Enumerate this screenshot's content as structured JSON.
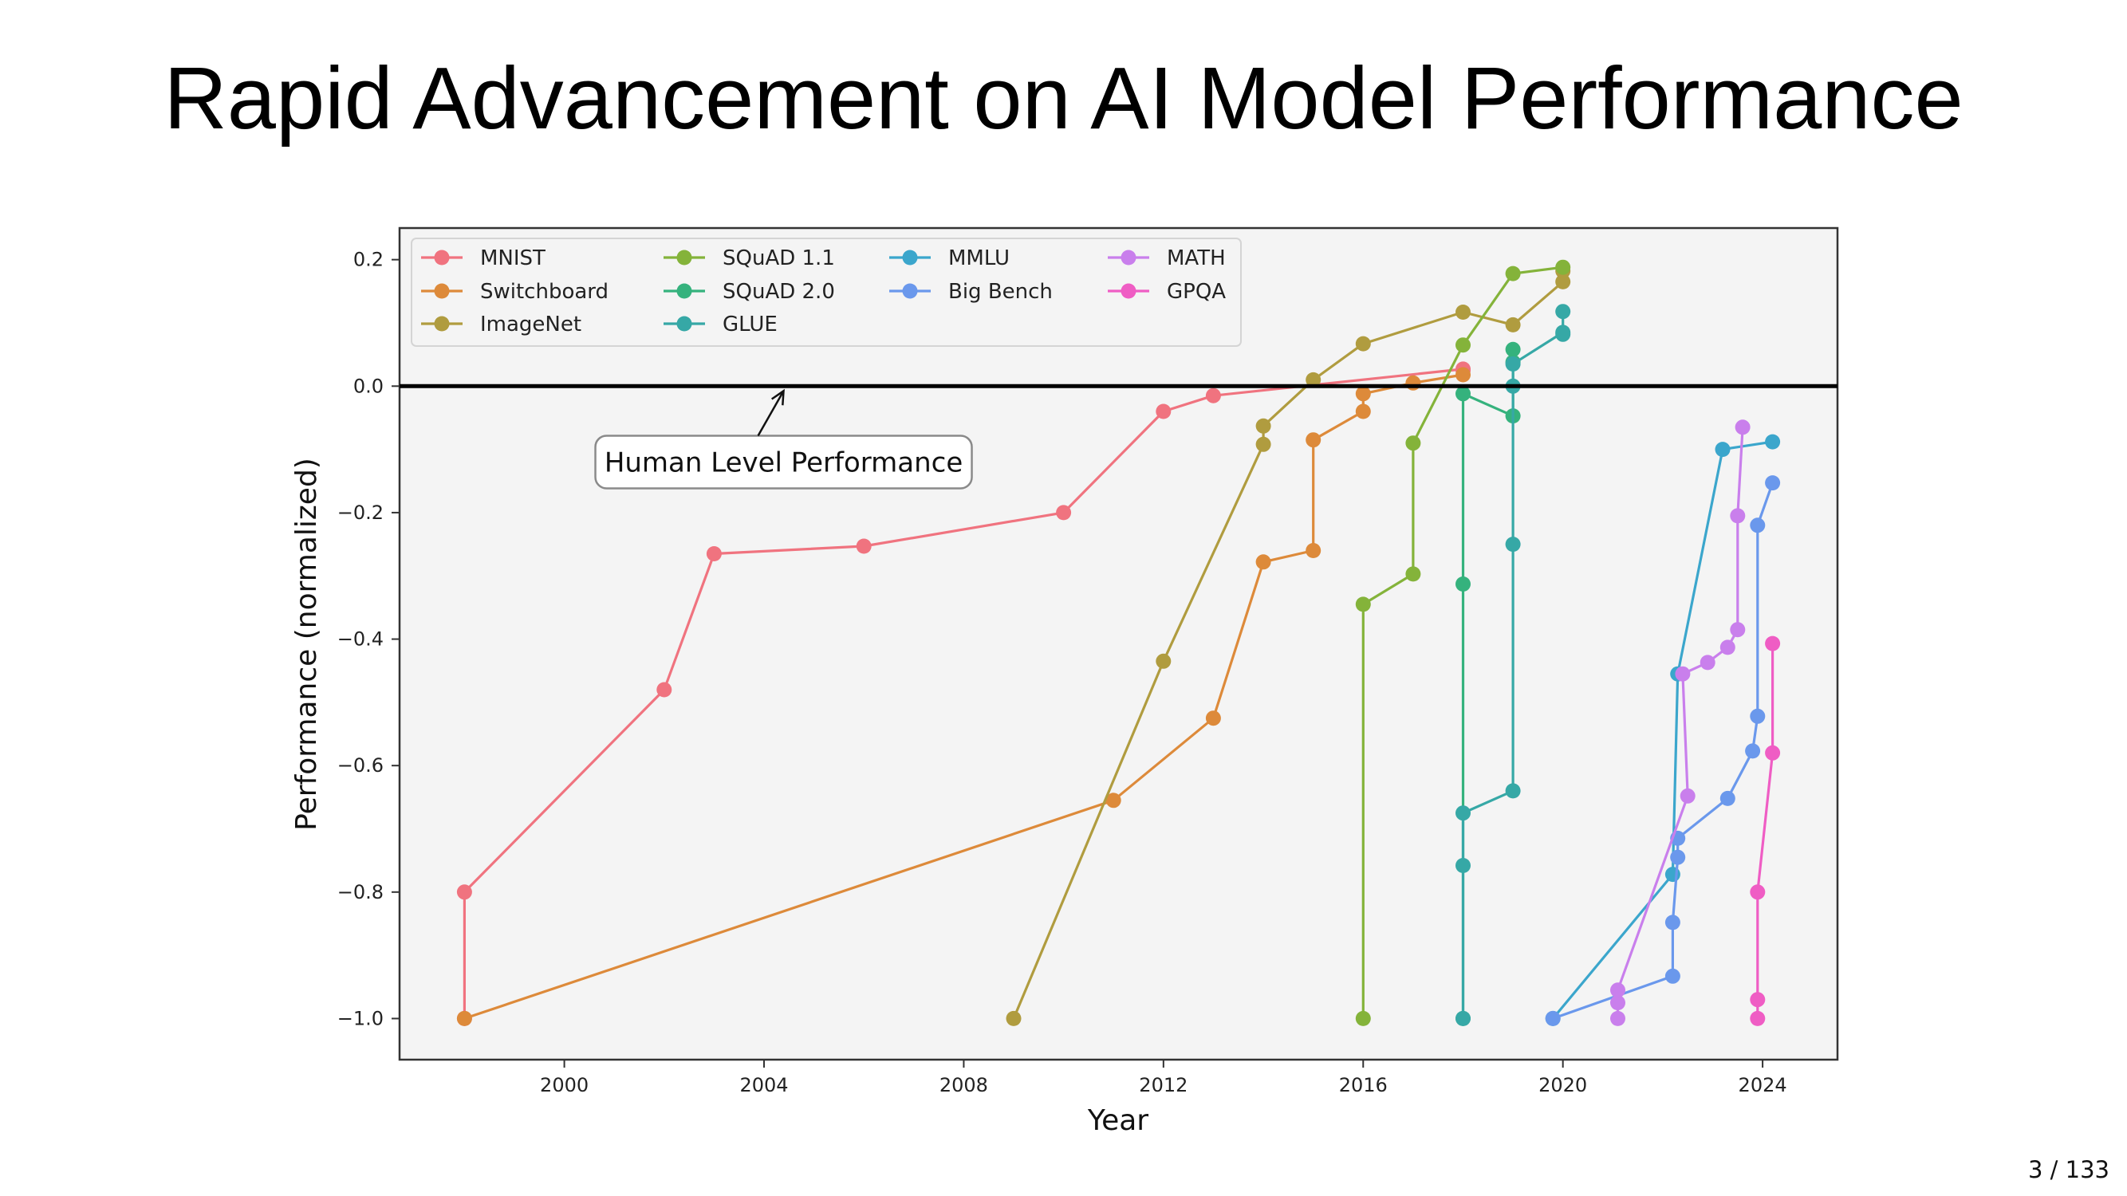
{
  "slide": {
    "title": "Rapid Advancement on AI Model Performance",
    "page_counter": "3 / 133"
  },
  "chart_data": {
    "type": "line",
    "title": "",
    "xlabel": "Year",
    "ylabel": "Performance (normalized)",
    "xlim": [
      1996.7,
      2025.5
    ],
    "ylim": [
      -1.065,
      0.25
    ],
    "xticks": [
      2000,
      2004,
      2008,
      2012,
      2016,
      2020,
      2024
    ],
    "xtick_labels": [
      "2000",
      "2004",
      "2008",
      "2012",
      "2016",
      "2020",
      "2024"
    ],
    "yticks": [
      0.2,
      0.0,
      -0.2,
      -0.4,
      -0.6,
      -0.8,
      -1.0
    ],
    "ytick_labels": [
      "0.2",
      "0.0",
      "−0.2",
      "−0.4",
      "−0.6",
      "−0.8",
      "−1.0"
    ],
    "grid": false,
    "legend_position": "top-left",
    "legend_columns": 4,
    "reference_line": {
      "y": 0.0,
      "label": "Human Level Performance",
      "color": "#000000"
    },
    "annotation": {
      "text": "Human Level Performance",
      "points_to": [
        2004.2,
        0.0
      ],
      "text_at": [
        2004.2,
        -0.12
      ]
    },
    "series": [
      {
        "name": "MNIST",
        "color": "#f0737f",
        "x": [
          1998,
          1998,
          2002,
          2003,
          2006,
          2010,
          2012,
          2013,
          2018,
          2018
        ],
        "y": [
          -1.0,
          -0.8,
          -0.48,
          -0.265,
          -0.253,
          -0.2,
          -0.04,
          -0.015,
          0.027,
          0.025
        ]
      },
      {
        "name": "Switchboard",
        "color": "#dd8a3a",
        "x": [
          1998,
          2011,
          2013,
          2014,
          2015,
          2015,
          2016,
          2016,
          2017,
          2018
        ],
        "y": [
          -1.0,
          -0.655,
          -0.525,
          -0.278,
          -0.26,
          -0.085,
          -0.04,
          -0.012,
          0.005,
          0.018
        ]
      },
      {
        "name": "ImageNet",
        "color": "#b09c3f",
        "x": [
          2009,
          2012,
          2014,
          2014,
          2015,
          2016,
          2018,
          2019,
          2020,
          2020
        ],
        "y": [
          -1.0,
          -0.435,
          -0.092,
          -0.063,
          0.01,
          0.067,
          0.117,
          0.097,
          0.165,
          0.182
        ]
      },
      {
        "name": "SQuAD 1.1",
        "color": "#84b33a",
        "x": [
          2016,
          2016,
          2017,
          2017,
          2018,
          2019,
          2020
        ],
        "y": [
          -1.0,
          -0.345,
          -0.297,
          -0.09,
          0.065,
          0.178,
          0.188
        ]
      },
      {
        "name": "SQuAD 2.0",
        "color": "#35b27d",
        "x": [
          2018,
          2018,
          2018,
          2019,
          2019,
          2019
        ],
        "y": [
          -1.0,
          -0.313,
          -0.012,
          -0.047,
          0.038,
          0.058
        ]
      },
      {
        "name": "GLUE",
        "color": "#36a8a6",
        "x": [
          2018,
          2018,
          2018,
          2019,
          2019,
          2019,
          2019,
          2020,
          2020,
          2020
        ],
        "y": [
          -1.0,
          -0.758,
          -0.675,
          -0.64,
          -0.25,
          0.0,
          0.035,
          0.085,
          0.082,
          0.118
        ]
      },
      {
        "name": "MMLU",
        "color": "#3ba6cc",
        "x": [
          2019.8,
          2022.2,
          2022.3,
          2023.2,
          2024.2
        ],
        "y": [
          -1.0,
          -0.772,
          -0.455,
          -0.1,
          -0.088
        ]
      },
      {
        "name": "Big Bench",
        "color": "#6a98ec",
        "x": [
          2019.8,
          2022.2,
          2022.2,
          2022.3,
          2022.3,
          2023.3,
          2023.8,
          2023.9,
          2023.9,
          2024.2
        ],
        "y": [
          -1.0,
          -0.933,
          -0.848,
          -0.745,
          -0.715,
          -0.652,
          -0.577,
          -0.522,
          -0.22,
          -0.153
        ]
      },
      {
        "name": "MATH",
        "color": "#c97fec",
        "x": [
          2021.1,
          2021.1,
          2021.1,
          2022.5,
          2022.4,
          2022.9,
          2023.3,
          2023.5,
          2023.5,
          2023.6
        ],
        "y": [
          -1.0,
          -0.975,
          -0.955,
          -0.648,
          -0.455,
          -0.437,
          -0.413,
          -0.385,
          -0.205,
          -0.065
        ]
      },
      {
        "name": "GPQA",
        "color": "#ef5dc4",
        "x": [
          2023.9,
          2023.9,
          2023.9,
          2024.2,
          2024.2
        ],
        "y": [
          -1.0,
          -0.97,
          -0.8,
          -0.58,
          -0.407
        ]
      }
    ]
  }
}
